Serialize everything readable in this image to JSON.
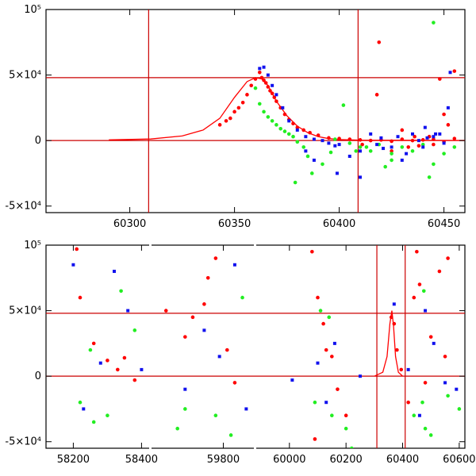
{
  "colors": {
    "red": "#ff0000",
    "green": "#22ee22",
    "blue": "#1111ee",
    "ref_line": "#cc0000"
  },
  "chart_data": [
    {
      "type": "scatter",
      "panel": "top",
      "title": "",
      "xlabel": "",
      "ylabel": "",
      "xlim": [
        60260,
        60460
      ],
      "ylim": [
        -55000,
        100000
      ],
      "x_ticks": [
        60300,
        60350,
        60400,
        60450
      ],
      "x_tick_labels": [
        "60300",
        "60350",
        "60400",
        "60450"
      ],
      "y_ticks": [
        -50000,
        0,
        50000,
        100000
      ],
      "y_tick_labels": [
        "-5×10⁴",
        "0",
        "5×10⁴",
        "10⁵"
      ],
      "hlines": [
        0,
        48000
      ],
      "vlines": [
        60309,
        60409
      ],
      "model_curve": {
        "color": "red",
        "points": [
          [
            60290,
            500
          ],
          [
            60310,
            1200
          ],
          [
            60325,
            3500
          ],
          [
            60335,
            8000
          ],
          [
            60343,
            17000
          ],
          [
            60350,
            33000
          ],
          [
            60356,
            45000
          ],
          [
            60360,
            48000
          ],
          [
            60363,
            47000
          ],
          [
            60366,
            42000
          ],
          [
            60370,
            30000
          ],
          [
            60375,
            19000
          ],
          [
            60380,
            11000
          ],
          [
            60385,
            6000
          ],
          [
            60390,
            3000
          ],
          [
            60395,
            1500
          ],
          [
            60400,
            800
          ],
          [
            60410,
            300
          ],
          [
            60460,
            100
          ]
        ]
      },
      "series": [
        {
          "color": "red",
          "points": [
            [
              60343,
              12000
            ],
            [
              60346,
              15000
            ],
            [
              60348,
              17000
            ],
            [
              60350,
              22000
            ],
            [
              60352,
              25000
            ],
            [
              60354,
              29000
            ],
            [
              60356,
              35000
            ],
            [
              60358,
              42000
            ],
            [
              60360,
              47000
            ],
            [
              60362,
              52000
            ],
            [
              60363,
              48000
            ],
            [
              60364,
              46000
            ],
            [
              60365,
              44000
            ],
            [
              60366,
              41000
            ],
            [
              60367,
              38000
            ],
            [
              60368,
              36000
            ],
            [
              60369,
              33000
            ],
            [
              60370,
              30000
            ],
            [
              60372,
              25000
            ],
            [
              60374,
              20000
            ],
            [
              60376,
              16000
            ],
            [
              60378,
              13000
            ],
            [
              60380,
              10000
            ],
            [
              60383,
              8000
            ],
            [
              60386,
              6000
            ],
            [
              60390,
              4000
            ],
            [
              60395,
              2000
            ],
            [
              60400,
              1500
            ],
            [
              60405,
              1000
            ],
            [
              60410,
              500
            ],
            [
              60415,
              0
            ],
            [
              60420,
              500
            ],
            [
              60425,
              -500
            ],
            [
              60430,
              1000
            ],
            [
              60435,
              0
            ],
            [
              60440,
              500
            ],
            [
              60445,
              1000
            ],
            [
              60450,
              -1000
            ],
            [
              60455,
              1500
            ],
            [
              60419,
              75000
            ],
            [
              60448,
              47000
            ],
            [
              60455,
              53000
            ],
            [
              60418,
              35000
            ],
            [
              60443,
              3000
            ],
            [
              60430,
              8000
            ],
            [
              60411,
              -3000
            ],
            [
              60425,
              -8000
            ],
            [
              60445,
              -3000
            ],
            [
              60450,
              20000
            ],
            [
              60433,
              -5000
            ],
            [
              60452,
              12000
            ],
            [
              60436,
              3000
            ],
            [
              60438,
              -4000
            ]
          ]
        },
        {
          "color": "green",
          "points": [
            [
              60360,
              40000
            ],
            [
              60362,
              28000
            ],
            [
              60364,
              22000
            ],
            [
              60366,
              18000
            ],
            [
              60368,
              15000
            ],
            [
              60370,
              12000
            ],
            [
              60372,
              9000
            ],
            [
              60374,
              7000
            ],
            [
              60376,
              5000
            ],
            [
              60378,
              3000
            ],
            [
              60380,
              -1000
            ],
            [
              60383,
              -5000
            ],
            [
              60385,
              -12000
            ],
            [
              60387,
              -25000
            ],
            [
              60392,
              -18000
            ],
            [
              60396,
              -9000
            ],
            [
              60398,
              1000
            ],
            [
              60402,
              27000
            ],
            [
              60405,
              -2000
            ],
            [
              60408,
              -8000
            ],
            [
              60410,
              -5000
            ],
            [
              60413,
              -5000
            ],
            [
              60415,
              -8000
            ],
            [
              60419,
              -3000
            ],
            [
              60422,
              -20000
            ],
            [
              60425,
              -10000
            ],
            [
              60430,
              -5000
            ],
            [
              60435,
              -8000
            ],
            [
              60440,
              -3000
            ],
            [
              60443,
              -28000
            ],
            [
              60445,
              90000
            ],
            [
              60450,
              -10000
            ],
            [
              60445,
              -18000
            ],
            [
              60455,
              -5000
            ],
            [
              60379,
              -32000
            ],
            [
              60425,
              -15000
            ]
          ]
        },
        {
          "color": "blue",
          "points": [
            [
              60362,
              55000
            ],
            [
              60364,
              56000
            ],
            [
              60366,
              50000
            ],
            [
              60368,
              42000
            ],
            [
              60370,
              35000
            ],
            [
              60373,
              25000
            ],
            [
              60376,
              15000
            ],
            [
              60380,
              8000
            ],
            [
              60384,
              3000
            ],
            [
              60388,
              1000
            ],
            [
              60392,
              0
            ],
            [
              60395,
              -2000
            ],
            [
              60398,
              -4000
            ],
            [
              60400,
              -3000
            ],
            [
              60405,
              -12000
            ],
            [
              60410,
              -8000
            ],
            [
              60415,
              5000
            ],
            [
              60418,
              -3000
            ],
            [
              60420,
              2000
            ],
            [
              60425,
              -5000
            ],
            [
              60428,
              3000
            ],
            [
              60430,
              -15000
            ],
            [
              60432,
              -10000
            ],
            [
              60435,
              5000
            ],
            [
              60438,
              0
            ],
            [
              60440,
              -5000
            ],
            [
              60442,
              2000
            ],
            [
              60445,
              3000
            ],
            [
              60448,
              5000
            ],
            [
              60450,
              -2000
            ],
            [
              60452,
              25000
            ],
            [
              60453,
              52000
            ],
            [
              60410,
              -28000
            ],
            [
              60384,
              -8000
            ],
            [
              60388,
              -15000
            ],
            [
              60399,
              -25000
            ],
            [
              60446,
              5000
            ],
            [
              60421,
              -6000
            ],
            [
              60441,
              10000
            ]
          ]
        }
      ]
    },
    {
      "type": "scatter",
      "panel": "bottom",
      "title": "",
      "xlabel": "",
      "ylabel": "",
      "segments": [
        {
          "xlim": [
            58120,
            58420
          ],
          "x_ticks": [
            58200,
            58400
          ],
          "x_tick_labels": [
            "58200",
            "58400"
          ]
        },
        {
          "xlim": [
            59610,
            59880
          ],
          "x_ticks": [
            59800
          ],
          "x_tick_labels": [
            "59800"
          ]
        },
        {
          "xlim": [
            59880,
            60620
          ],
          "x_ticks": [
            60000,
            60200,
            60400,
            60600
          ],
          "x_tick_labels": [
            "60000",
            "60200",
            "60400",
            "60600"
          ]
        }
      ],
      "ylim": [
        -55000,
        100000
      ],
      "y_ticks": [
        -50000,
        0,
        50000,
        100000
      ],
      "y_tick_labels": [
        "-5×10⁴",
        "0",
        "5×10⁴",
        "10⁵"
      ],
      "hlines": [
        0,
        48000
      ],
      "vlines": [
        60309,
        60409
      ],
      "model_curve": {
        "color": "red",
        "points": [
          [
            60300,
            0
          ],
          [
            60330,
            3000
          ],
          [
            60345,
            15000
          ],
          [
            60355,
            40000
          ],
          [
            60362,
            50000
          ],
          [
            60368,
            38000
          ],
          [
            60375,
            15000
          ],
          [
            60385,
            3000
          ],
          [
            60400,
            0
          ]
        ]
      },
      "series": [
        {
          "color": "red",
          "points": [
            [
              58210,
              97000
            ],
            [
              58220,
              60000
            ],
            [
              58260,
              25000
            ],
            [
              58300,
              12000
            ],
            [
              58330,
              5000
            ],
            [
              58350,
              14000
            ],
            [
              58380,
              -3000
            ],
            [
              59650,
              50000
            ],
            [
              59700,
              30000
            ],
            [
              59720,
              45000
            ],
            [
              59750,
              55000
            ],
            [
              59760,
              75000
            ],
            [
              59780,
              90000
            ],
            [
              59810,
              20000
            ],
            [
              59830,
              -5000
            ],
            [
              60080,
              95000
            ],
            [
              60100,
              60000
            ],
            [
              60120,
              40000
            ],
            [
              60130,
              20000
            ],
            [
              60150,
              15000
            ],
            [
              60170,
              -10000
            ],
            [
              60200,
              -30000
            ],
            [
              60090,
              -48000
            ],
            [
              60360,
              45000
            ],
            [
              60370,
              40000
            ],
            [
              60380,
              20000
            ],
            [
              60395,
              5000
            ],
            [
              60440,
              60000
            ],
            [
              60450,
              95000
            ],
            [
              60460,
              70000
            ],
            [
              60500,
              30000
            ],
            [
              60550,
              15000
            ],
            [
              60420,
              -20000
            ],
            [
              60480,
              -5000
            ],
            [
              60530,
              80000
            ],
            [
              60560,
              90000
            ]
          ]
        },
        {
          "color": "green",
          "points": [
            [
              58220,
              -20000
            ],
            [
              58260,
              -35000
            ],
            [
              58300,
              -30000
            ],
            [
              58340,
              65000
            ],
            [
              58380,
              35000
            ],
            [
              58250,
              20000
            ],
            [
              59680,
              -40000
            ],
            [
              59700,
              -25000
            ],
            [
              59780,
              -30000
            ],
            [
              59850,
              60000
            ],
            [
              59820,
              -45000
            ],
            [
              60090,
              -20000
            ],
            [
              60110,
              50000
            ],
            [
              60140,
              45000
            ],
            [
              60150,
              -30000
            ],
            [
              60200,
              -40000
            ],
            [
              60220,
              -55000
            ],
            [
              60440,
              -30000
            ],
            [
              60470,
              -20000
            ],
            [
              60500,
              -45000
            ],
            [
              60560,
              -15000
            ],
            [
              60600,
              -25000
            ],
            [
              60475,
              65000
            ],
            [
              60480,
              -40000
            ]
          ]
        },
        {
          "color": "blue",
          "points": [
            [
              58200,
              85000
            ],
            [
              58230,
              -25000
            ],
            [
              58280,
              10000
            ],
            [
              58320,
              80000
            ],
            [
              58360,
              50000
            ],
            [
              58400,
              5000
            ],
            [
              59700,
              -10000
            ],
            [
              59750,
              35000
            ],
            [
              59790,
              15000
            ],
            [
              59830,
              85000
            ],
            [
              59860,
              -25000
            ],
            [
              60010,
              -3000
            ],
            [
              60100,
              10000
            ],
            [
              60130,
              -20000
            ],
            [
              60160,
              25000
            ],
            [
              60250,
              0
            ],
            [
              60370,
              55000
            ],
            [
              60420,
              5000
            ],
            [
              60480,
              50000
            ],
            [
              60510,
              25000
            ],
            [
              60550,
              -5000
            ],
            [
              60590,
              -10000
            ],
            [
              60460,
              -30000
            ]
          ]
        }
      ]
    }
  ]
}
